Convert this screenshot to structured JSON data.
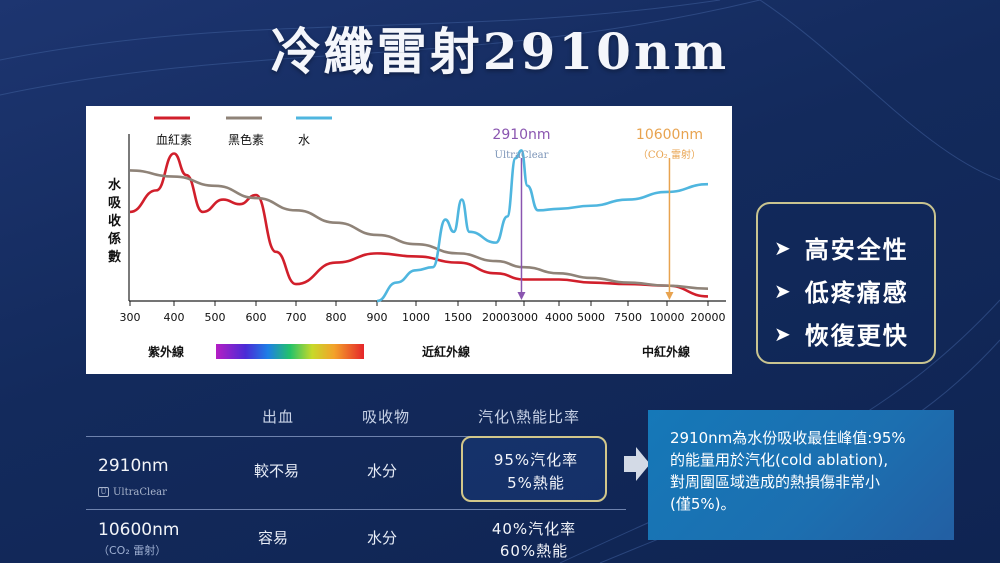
{
  "title": "冷纖雷射2910nm",
  "chart_data": {
    "type": "line",
    "ylabel": "水吸收係數",
    "x_ticks": [
      "300",
      "400",
      "500",
      "600",
      "700",
      "800",
      "900",
      "1000",
      "1500",
      "2000",
      "3000",
      "4000",
      "5000",
      "7500",
      "10000",
      "20000"
    ],
    "series": [
      {
        "name": "血紅素",
        "color": "#d11f2b",
        "points": [
          [
            300,
            0.58
          ],
          [
            360,
            0.72
          ],
          [
            400,
            0.96
          ],
          [
            430,
            0.82
          ],
          [
            470,
            0.58
          ],
          [
            520,
            0.66
          ],
          [
            560,
            0.63
          ],
          [
            600,
            0.69
          ],
          [
            650,
            0.32
          ],
          [
            700,
            0.11
          ],
          [
            800,
            0.25
          ],
          [
            900,
            0.31
          ],
          [
            1000,
            0.29
          ],
          [
            1500,
            0.25
          ],
          [
            2000,
            0.18
          ],
          [
            3000,
            0.14
          ],
          [
            4000,
            0.14
          ],
          [
            5000,
            0.12
          ],
          [
            7500,
            0.11
          ],
          [
            10000,
            0.1
          ],
          [
            20000,
            0.03
          ]
        ]
      },
      {
        "name": "黑色素",
        "color": "#8f8378",
        "points": [
          [
            300,
            0.85
          ],
          [
            400,
            0.81
          ],
          [
            500,
            0.75
          ],
          [
            600,
            0.67
          ],
          [
            700,
            0.59
          ],
          [
            800,
            0.51
          ],
          [
            900,
            0.43
          ],
          [
            1000,
            0.37
          ],
          [
            1500,
            0.31
          ],
          [
            2000,
            0.26
          ],
          [
            3000,
            0.22
          ],
          [
            4000,
            0.18
          ],
          [
            5000,
            0.15
          ],
          [
            7500,
            0.12
          ],
          [
            10000,
            0.1
          ],
          [
            20000,
            0.08
          ]
        ]
      },
      {
        "name": "水",
        "color": "#4fb6df",
        "points": [
          [
            900,
            0.0
          ],
          [
            950,
            0.12
          ],
          [
            1000,
            0.2
          ],
          [
            1200,
            0.22
          ],
          [
            1350,
            0.53
          ],
          [
            1450,
            0.45
          ],
          [
            1550,
            0.66
          ],
          [
            1650,
            0.45
          ],
          [
            2000,
            0.38
          ],
          [
            2400,
            0.55
          ],
          [
            2700,
            0.93
          ],
          [
            2910,
            0.98
          ],
          [
            3100,
            0.75
          ],
          [
            3400,
            0.59
          ],
          [
            4000,
            0.6
          ],
          [
            5000,
            0.62
          ],
          [
            7500,
            0.66
          ],
          [
            10000,
            0.71
          ],
          [
            20000,
            0.76
          ]
        ]
      }
    ],
    "markers": [
      {
        "x": 2910,
        "label": "2910nm",
        "sublabel": "UltraClear",
        "color": "#8a55b0"
      },
      {
        "x": 10600,
        "label": "10600nm",
        "sublabel": "（CO₂ 雷射）",
        "color": "#e8a34f"
      }
    ],
    "spectrum_labels": [
      "紫外線",
      "近紅外線",
      "中紅外線"
    ]
  },
  "benefits": [
    "高安全性",
    "低疼痛感",
    "恢復更快"
  ],
  "table": {
    "headers": [
      "出血",
      "吸收物",
      "汽化\\熱能比率"
    ],
    "rows": [
      {
        "name": "2910nm",
        "sub": "UltraClear",
        "bleeding": "較不易",
        "absorber": "水分",
        "ratio1": "95%汽化率",
        "ratio2": "5%熱能"
      },
      {
        "name": "10600nm",
        "sub": "（CO₂ 雷射）",
        "bleeding": "容易",
        "absorber": "水分",
        "ratio1": "40%汽化率",
        "ratio2": "60%熱能"
      }
    ]
  },
  "info": [
    "2910nm為水份吸收最佳峰值:95%",
    "的能量用於汽化(cold ablation),",
    "對周圍區域造成的熱損傷非常小",
    "(僅5%)。"
  ]
}
